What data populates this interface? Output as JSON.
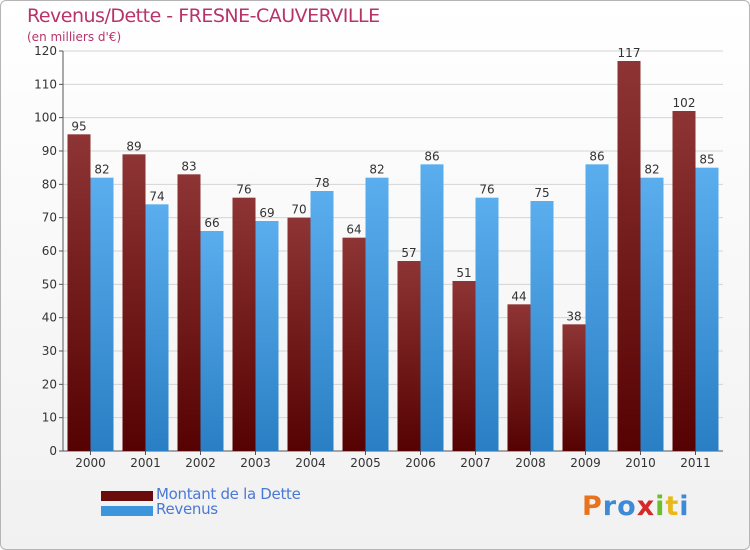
{
  "title": "Revenus/Dette - FRESNE-CAUVERVILLE",
  "subtitle": "(en milliers d'€)",
  "colors": {
    "dette": "#7a1a1a",
    "revenus": "#3d95dc",
    "title": "#b8336a",
    "legend_text": "#4a78d6"
  },
  "legend": [
    {
      "label": "Montant de la Dette",
      "color": "#6a0c0c"
    },
    {
      "label": "Revenus",
      "color": "#3d95dc"
    }
  ],
  "logo": {
    "letters": [
      "P",
      "r",
      "o",
      "x",
      "i",
      "t",
      "i"
    ],
    "colors": [
      "#e8731c",
      "#3d8ad6",
      "#3d8ad6",
      "#d42a2a",
      "#6bbf2a",
      "#e8b81c",
      "#3d8ad6"
    ]
  },
  "chart_data": {
    "type": "bar",
    "categories": [
      "2000",
      "2001",
      "2002",
      "2003",
      "2004",
      "2005",
      "2006",
      "2007",
      "2008",
      "2009",
      "2010",
      "2011"
    ],
    "series": [
      {
        "name": "Montant de la Dette",
        "values": [
          95,
          89,
          83,
          76,
          70,
          64,
          57,
          51,
          44,
          38,
          117,
          102
        ]
      },
      {
        "name": "Revenus",
        "values": [
          82,
          74,
          66,
          69,
          78,
          82,
          86,
          76,
          75,
          86,
          82,
          85
        ]
      }
    ],
    "ylim": [
      0,
      120
    ],
    "yticks": [
      0,
      10,
      20,
      30,
      40,
      50,
      60,
      70,
      80,
      90,
      100,
      110,
      120
    ],
    "grid": true,
    "legend_position": "bottom-left"
  }
}
